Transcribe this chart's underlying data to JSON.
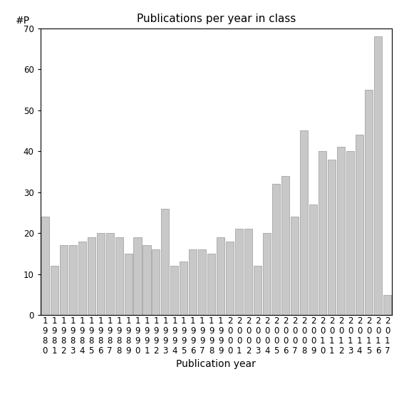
{
  "title": "Publications per year in class",
  "xlabel": "Publication year",
  "ylabel": "#P",
  "years": [
    1980,
    1981,
    1982,
    1983,
    1984,
    1985,
    1986,
    1987,
    1988,
    1989,
    1990,
    1991,
    1992,
    1993,
    1994,
    1995,
    1996,
    1997,
    1998,
    1999,
    2000,
    2001,
    2002,
    2003,
    2004,
    2005,
    2006,
    2007,
    2008,
    2009,
    2010,
    2011,
    2012,
    2013,
    2014,
    2015,
    2016,
    2017
  ],
  "values": [
    24,
    12,
    17,
    17,
    18,
    19,
    20,
    20,
    19,
    15,
    19,
    17,
    16,
    26,
    12,
    13,
    16,
    16,
    15,
    19,
    18,
    21,
    21,
    12,
    20,
    32,
    34,
    24,
    45,
    27,
    40,
    38,
    41,
    40,
    44,
    55,
    68,
    5
  ],
  "bar_color": "#c8c8c8",
  "bar_edgecolor": "#999999",
  "ylim": [
    0,
    70
  ],
  "yticks": [
    0,
    10,
    20,
    30,
    40,
    50,
    60,
    70
  ],
  "figsize": [
    5.67,
    5.67
  ],
  "dpi": 100,
  "title_fontsize": 11,
  "axis_label_fontsize": 10,
  "tick_fontsize": 8.5
}
